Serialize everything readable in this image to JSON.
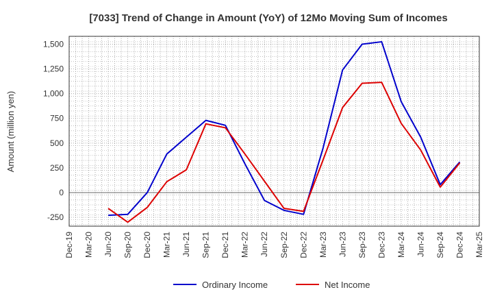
{
  "chart_data": {
    "type": "line",
    "title": "[7033]  Trend of Change in Amount (YoY) of 12Mo Moving Sum of Incomes",
    "xlabel": "",
    "ylabel": "Amount (million yen)",
    "categories": [
      "Dec-19",
      "Mar-20",
      "Jun-20",
      "Sep-20",
      "Dec-20",
      "Mar-21",
      "Jun-21",
      "Sep-21",
      "Dec-21",
      "Mar-22",
      "Jun-22",
      "Sep-22",
      "Dec-22",
      "Mar-23",
      "Jun-23",
      "Sep-23",
      "Dec-23",
      "Mar-24",
      "Jun-24",
      "Sep-24",
      "Dec-24",
      "Mar-25"
    ],
    "yticks": [
      -250,
      0,
      250,
      500,
      750,
      1000,
      1250,
      1500
    ],
    "ytick_labels": [
      "-250",
      "0",
      "250",
      "500",
      "750",
      "1,000",
      "1,250",
      "1,500"
    ],
    "ylim": [
      -340,
      1580
    ],
    "grid": true,
    "legend_position": "bottom-center",
    "series": [
      {
        "name": "Ordinary Income",
        "color": "#0000cc",
        "values": [
          null,
          null,
          -230,
          -220,
          0,
          390,
          560,
          730,
          680,
          290,
          -80,
          -180,
          -220,
          450,
          1240,
          1500,
          1525,
          920,
          560,
          80,
          310,
          null
        ]
      },
      {
        "name": "Net Income",
        "color": "#dd0000",
        "values": [
          null,
          null,
          -160,
          -300,
          -150,
          110,
          230,
          695,
          655,
          390,
          115,
          -160,
          -190,
          330,
          860,
          1105,
          1115,
          700,
          430,
          55,
          300,
          null
        ]
      }
    ]
  }
}
